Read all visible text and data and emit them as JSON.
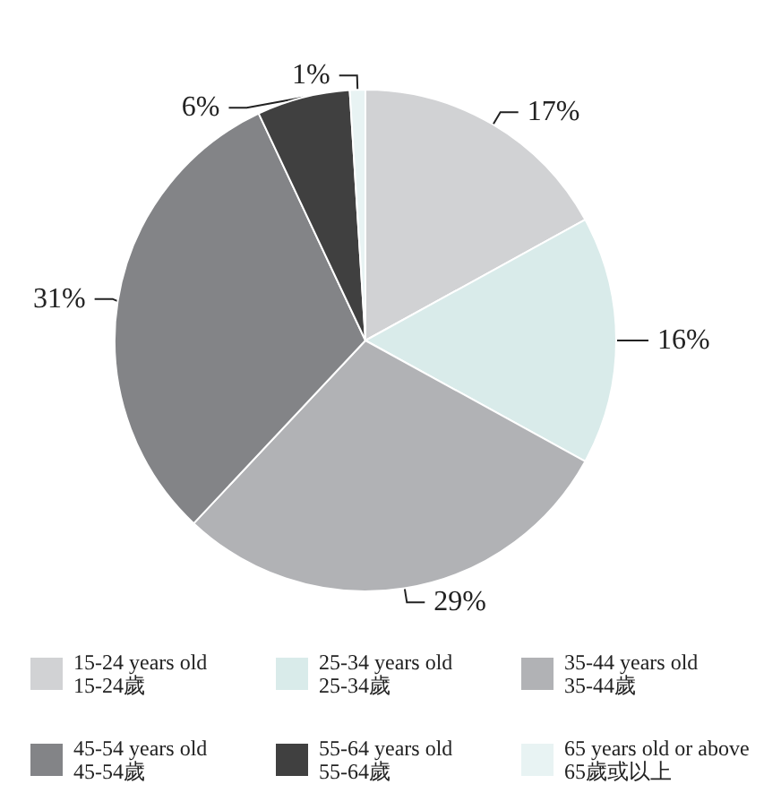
{
  "chart_data": {
    "type": "pie",
    "categories": [
      "15-24 years old\n15-24歲",
      "25-34 years old\n25-34歲",
      "35-44 years old\n35-44歲",
      "45-54 years old\n45-54歲",
      "55-64 years old\n55-64歲",
      "65 years old or above\n65歲或以上"
    ],
    "values": [
      17,
      16,
      29,
      31,
      6,
      1
    ],
    "value_labels": [
      "17%",
      "16%",
      "29%",
      "31%",
      "6%",
      "1%"
    ],
    "colors": [
      "#d1d2d4",
      "#d9ebea",
      "#b1b2b5",
      "#838487",
      "#404040",
      "#e8f3f3"
    ],
    "legend": "bottom"
  }
}
